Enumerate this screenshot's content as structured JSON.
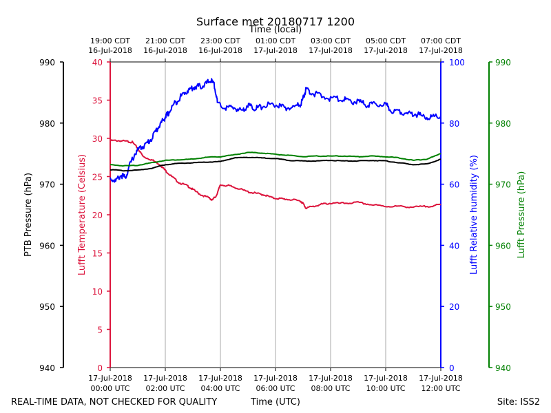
{
  "chart_data": {
    "type": "line",
    "title": "Surface met 20180717 1200",
    "top_axis_title": "Time (local)",
    "x_axis_title": "Time (UTC)",
    "footer_left": "REAL-TIME DATA, NOT CHECKED FOR QUALITY",
    "footer_right": "Site: ISS2",
    "x_range_hours": [
      0,
      12
    ],
    "x_ticks_utc": [
      {
        "h": 0,
        "l1": "17-Jul-2018",
        "l2": "00:00 UTC"
      },
      {
        "h": 2,
        "l1": "17-Jul-2018",
        "l2": "02:00 UTC"
      },
      {
        "h": 4,
        "l1": "17-Jul-2018",
        "l2": "04:00 UTC"
      },
      {
        "h": 6,
        "l1": "17-Jul-2018",
        "l2": "06:00 UTC"
      },
      {
        "h": 8,
        "l1": "17-Jul-2018",
        "l2": "08:00 UTC"
      },
      {
        "h": 10,
        "l1": "17-Jul-2018",
        "l2": "10:00 UTC"
      },
      {
        "h": 12,
        "l1": "17-Jul-2018",
        "l2": "12:00 UTC"
      }
    ],
    "x_ticks_local": [
      {
        "h": 0,
        "l1": "19:00 CDT",
        "l2": "16-Jul-2018"
      },
      {
        "h": 2,
        "l1": "21:00 CDT",
        "l2": "16-Jul-2018"
      },
      {
        "h": 4,
        "l1": "23:00 CDT",
        "l2": "16-Jul-2018"
      },
      {
        "h": 6,
        "l1": "01:00 CDT",
        "l2": "17-Jul-2018"
      },
      {
        "h": 8,
        "l1": "03:00 CDT",
        "l2": "17-Jul-2018"
      },
      {
        "h": 10,
        "l1": "05:00 CDT",
        "l2": "17-Jul-2018"
      },
      {
        "h": 12,
        "l1": "07:00 CDT",
        "l2": "17-Jul-2018"
      }
    ],
    "axes": [
      {
        "id": "ptb",
        "label": "PTB Pressure (hPa)",
        "color": "#000000",
        "range": [
          940,
          990
        ],
        "ticks": [
          940,
          950,
          960,
          970,
          980,
          990
        ]
      },
      {
        "id": "temp",
        "label": "Lufft Temperature (Celsius)",
        "color": "#dc143c",
        "range": [
          0,
          40
        ],
        "ticks": [
          0,
          5,
          10,
          15,
          20,
          25,
          30,
          35,
          40
        ]
      },
      {
        "id": "rh",
        "label": "Lufft Relative humidity (%)",
        "color": "#0000ff",
        "range": [
          0,
          100
        ],
        "ticks": [
          0,
          20,
          40,
          60,
          80,
          100
        ]
      },
      {
        "id": "lp",
        "label": "Lufft Pressure (hPa)",
        "color": "#008000",
        "range": [
          940,
          990
        ],
        "ticks": [
          940,
          950,
          960,
          970,
          980,
          990
        ]
      }
    ],
    "series": [
      {
        "name": "Lufft Temperature",
        "axis": "temp",
        "color": "#dc143c",
        "x": [
          0,
          0.3,
          0.6,
          0.8,
          1.0,
          1.2,
          1.5,
          1.8,
          2.0,
          2.2,
          2.5,
          2.8,
          3.0,
          3.3,
          3.6,
          3.7,
          3.85,
          4.0,
          4.3,
          4.6,
          5.0,
          5.3,
          5.6,
          5.9,
          6.2,
          6.5,
          6.9,
          7.0,
          7.1,
          7.4,
          7.7,
          8.0,
          8.5,
          9.0,
          9.5,
          10.0,
          10.5,
          11.0,
          11.5,
          12.0
        ],
        "values": [
          29.7,
          29.7,
          29.6,
          29.5,
          28.7,
          27.6,
          27.2,
          26.6,
          25.8,
          25.1,
          24.2,
          23.8,
          23.3,
          22.6,
          22.2,
          21.9,
          22.5,
          23.9,
          23.8,
          23.5,
          23.0,
          22.8,
          22.6,
          22.2,
          22.1,
          22.0,
          21.8,
          21.5,
          20.9,
          21.1,
          21.4,
          21.5,
          21.5,
          21.6,
          21.3,
          21.1,
          21.1,
          21.0,
          21.1,
          21.3
        ]
      },
      {
        "name": "Lufft Relative humidity",
        "axis": "rh",
        "color": "#0000ff",
        "x": [
          0,
          0.2,
          0.4,
          0.55,
          0.7,
          0.9,
          1.1,
          1.3,
          1.5,
          1.7,
          1.85,
          2.0,
          2.1,
          2.3,
          2.5,
          2.7,
          2.9,
          3.1,
          3.3,
          3.5,
          3.65,
          3.8,
          3.9,
          4.2,
          4.5,
          4.8,
          5.0,
          5.2,
          5.4,
          5.7,
          6.0,
          6.3,
          6.6,
          6.9,
          7.0,
          7.1,
          7.3,
          7.6,
          8.0,
          8.4,
          8.7,
          9.0,
          9.3,
          9.6,
          10.0,
          10.2,
          10.5,
          10.8,
          11.1,
          11.4,
          11.7,
          12.0
        ],
        "values": [
          62,
          61,
          63,
          62,
          66,
          70,
          72,
          73,
          75,
          78,
          80,
          82,
          83,
          86,
          88,
          90,
          91,
          92,
          92,
          93,
          94,
          92,
          86,
          85,
          85,
          84,
          86,
          85,
          85,
          86,
          86,
          85,
          85,
          86,
          88,
          91,
          90,
          89,
          88,
          88,
          87,
          87,
          86,
          86,
          86,
          84,
          84,
          83,
          83,
          82,
          82,
          82
        ]
      },
      {
        "name": "PTB Pressure",
        "axis": "ptb",
        "color": "#000000",
        "x": [
          0,
          0.5,
          1.0,
          1.5,
          2.0,
          2.5,
          3.0,
          3.5,
          4.0,
          4.5,
          5.0,
          5.5,
          6.0,
          6.5,
          7.0,
          7.5,
          8.0,
          8.5,
          9.0,
          9.5,
          10.0,
          10.5,
          11.0,
          11.5,
          12.0
        ],
        "values": [
          972.4,
          972.2,
          972.3,
          972.6,
          973.2,
          973.4,
          973.5,
          973.6,
          973.7,
          974.3,
          974.4,
          974.3,
          974.2,
          973.9,
          973.8,
          973.8,
          973.9,
          973.8,
          973.8,
          973.9,
          973.8,
          973.5,
          973.2,
          973.3,
          974.1
        ]
      },
      {
        "name": "Lufft Pressure",
        "axis": "lp",
        "color": "#008000",
        "x": [
          0,
          0.5,
          1.0,
          1.5,
          2.0,
          2.5,
          3.0,
          3.5,
          4.0,
          4.5,
          5.0,
          5.5,
          6.0,
          6.5,
          7.0,
          7.5,
          8.0,
          8.5,
          9.0,
          9.5,
          10.0,
          10.5,
          11.0,
          11.5,
          12.0
        ],
        "values": [
          973.2,
          973.0,
          973.1,
          973.5,
          973.9,
          974.0,
          974.1,
          974.4,
          974.5,
          974.8,
          975.2,
          975.1,
          974.9,
          974.7,
          974.5,
          974.6,
          974.6,
          974.6,
          974.5,
          974.6,
          974.5,
          974.3,
          973.9,
          974.1,
          975.0
        ]
      }
    ]
  }
}
